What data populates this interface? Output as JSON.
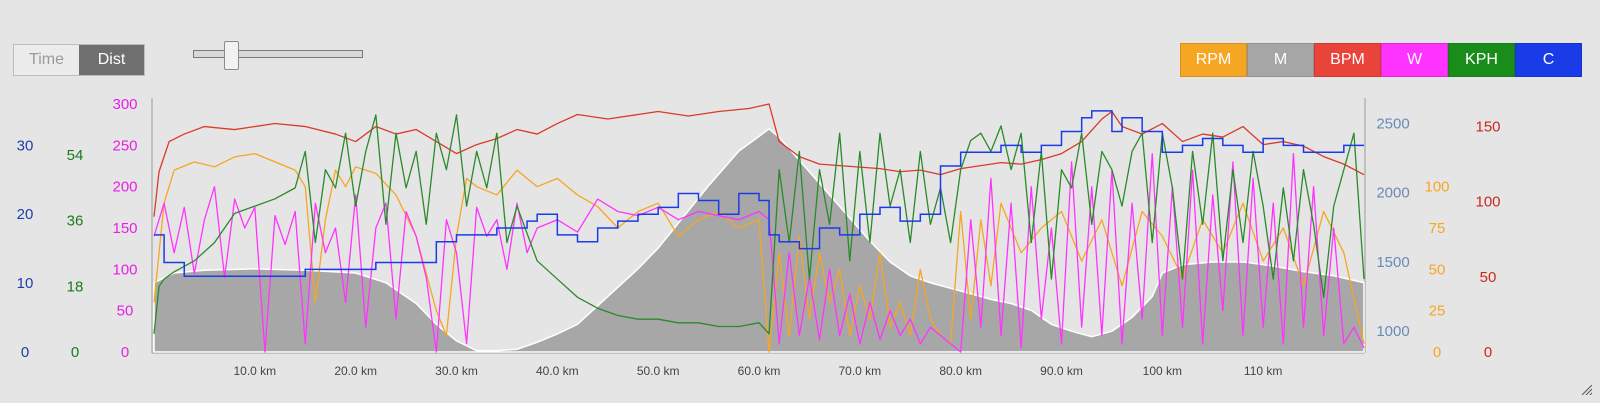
{
  "controls": {
    "mode_options": [
      "Time",
      "Dist"
    ],
    "active_mode": "Dist",
    "zoom_slider_value": 0.2
  },
  "legend": [
    {
      "label": "RPM",
      "color": "#f5a623"
    },
    {
      "label": "M",
      "color": "#a6a6a6"
    },
    {
      "label": "BPM",
      "color": "#e8443a"
    },
    {
      "label": "W",
      "color": "#ff33ff"
    },
    {
      "label": "KPH",
      "color": "#1a8c1a"
    },
    {
      "label": "C",
      "color": "#1a3be8"
    }
  ],
  "chart_data": {
    "type": "line",
    "x_unit": "km",
    "x_range": [
      0,
      120
    ],
    "x_tick_labels": [
      "10.0 km",
      "20.0 km",
      "30.0 km",
      "40.0 km",
      "50.0 km",
      "60.0 km",
      "70.0 km",
      "80.0 km",
      "90.0 km",
      "100 km",
      "110 km"
    ],
    "x_ticks": [
      10,
      20,
      30,
      40,
      50,
      60,
      70,
      80,
      90,
      100,
      110
    ],
    "axes": [
      {
        "name": "C",
        "side": "left",
        "color": "#1a3fa8",
        "range": [
          0,
          36
        ],
        "tick_values": [
          0,
          10,
          20,
          30
        ],
        "tick_labels": [
          "0",
          "10",
          "20",
          "30"
        ]
      },
      {
        "name": "KPH",
        "side": "left",
        "color": "#1a7a1a",
        "range": [
          0,
          68
        ],
        "tick_values": [
          0,
          18,
          36,
          54
        ],
        "tick_labels": [
          "0",
          "18",
          "36",
          "54"
        ]
      },
      {
        "name": "W",
        "side": "left",
        "color": "#e620e6",
        "range": [
          0,
          300
        ],
        "tick_values": [
          0,
          50,
          100,
          150,
          200,
          250,
          300
        ],
        "tick_labels": [
          "0",
          "50",
          "100",
          "150",
          "200",
          "250",
          "300"
        ]
      },
      {
        "name": "M",
        "side": "right",
        "color": "#6a8ab8",
        "range": [
          850,
          2640
        ],
        "tick_values": [
          1000,
          1500,
          2000,
          2500
        ],
        "tick_labels": [
          "1000",
          "1500",
          "2000",
          "2500"
        ]
      },
      {
        "name": "RPM",
        "side": "right",
        "color": "#f5a623",
        "range": [
          0,
          150
        ],
        "tick_values": [
          0,
          25,
          50,
          75,
          100
        ],
        "tick_labels": [
          "0",
          "25",
          "50",
          "75",
          "100"
        ]
      },
      {
        "name": "BPM",
        "side": "right",
        "color": "#c82a1e",
        "range": [
          0,
          165
        ],
        "tick_values": [
          0,
          50,
          100,
          150
        ],
        "tick_labels": [
          "0",
          "50",
          "100",
          "150"
        ]
      }
    ],
    "series": [
      {
        "name": "M",
        "kind": "area",
        "x": [
          0,
          2,
          5,
          10,
          15,
          20,
          23,
          26,
          28,
          30,
          32,
          34,
          36,
          38,
          40,
          42,
          45,
          48,
          50,
          52,
          55,
          58,
          61,
          62,
          65,
          68,
          71,
          73,
          75,
          77,
          79,
          81,
          83,
          85,
          87,
          89,
          91,
          93,
          95,
          97,
          99,
          100,
          102,
          105,
          108,
          111,
          114,
          117,
          120
        ],
        "y": [
          1350,
          1420,
          1440,
          1450,
          1440,
          1420,
          1350,
          1200,
          1050,
          930,
          860,
          860,
          870,
          920,
          980,
          1050,
          1250,
          1450,
          1600,
          1780,
          2050,
          2300,
          2460,
          2400,
          2150,
          1900,
          1650,
          1500,
          1400,
          1350,
          1310,
          1270,
          1230,
          1200,
          1150,
          1050,
          1000,
          960,
          1000,
          1100,
          1250,
          1420,
          1480,
          1500,
          1500,
          1470,
          1430,
          1400,
          1350
        ]
      },
      {
        "name": "BPM",
        "kind": "line",
        "x": [
          0,
          0.5,
          1.5,
          3,
          5,
          8,
          12,
          15,
          18,
          20,
          22,
          24,
          26,
          28,
          30,
          32,
          34,
          36,
          38,
          40,
          42,
          45,
          48,
          50,
          53,
          56,
          59,
          61,
          62,
          64,
          66,
          68,
          70,
          72,
          74,
          76,
          78,
          79,
          80,
          82,
          84,
          86,
          88,
          90,
          92,
          94,
          95,
          96,
          98,
          100,
          102,
          104,
          106,
          108,
          110,
          112,
          114,
          116,
          118,
          120
        ],
        "y": [
          90,
          120,
          140,
          145,
          150,
          148,
          152,
          150,
          145,
          140,
          150,
          145,
          148,
          140,
          132,
          138,
          142,
          148,
          145,
          152,
          158,
          155,
          158,
          160,
          157,
          160,
          162,
          165,
          140,
          130,
          125,
          124,
          123,
          122,
          120,
          121,
          118,
          120,
          122,
          124,
          126,
          125,
          128,
          132,
          140,
          155,
          160,
          150,
          145,
          152,
          140,
          145,
          143,
          150,
          138,
          140,
          137,
          130,
          125,
          118
        ]
      },
      {
        "name": "RPM",
        "kind": "line",
        "x": [
          0,
          1,
          2,
          4,
          6,
          8,
          10,
          12,
          14,
          15,
          16,
          17,
          18,
          19,
          20,
          22,
          24,
          26,
          28,
          29,
          30,
          31,
          32,
          34,
          36,
          38,
          40,
          42,
          44,
          46,
          48,
          50,
          52,
          54,
          56,
          58,
          60,
          61,
          62,
          63,
          64,
          65,
          66,
          67,
          68,
          69,
          70,
          71,
          72,
          73,
          74,
          75,
          76,
          77,
          78,
          79,
          80,
          81,
          82,
          83,
          84,
          86,
          88,
          90,
          92,
          94,
          96,
          98,
          100,
          102,
          104,
          106,
          108,
          110,
          112,
          114,
          116,
          118,
          120
        ],
        "y": [
          30,
          90,
          110,
          115,
          112,
          118,
          120,
          115,
          110,
          100,
          30,
          80,
          110,
          100,
          112,
          108,
          95,
          70,
          25,
          10,
          70,
          105,
          100,
          95,
          110,
          100,
          105,
          95,
          88,
          75,
          85,
          90,
          70,
          80,
          85,
          75,
          80,
          0,
          60,
          10,
          70,
          20,
          60,
          30,
          50,
          10,
          40,
          20,
          60,
          15,
          30,
          10,
          50,
          20,
          10,
          5,
          85,
          20,
          80,
          40,
          90,
          60,
          75,
          85,
          55,
          80,
          40,
          85,
          70,
          45,
          80,
          60,
          90,
          55,
          75,
          40,
          85,
          60,
          5
        ]
      },
      {
        "name": "W",
        "kind": "line",
        "x": [
          0,
          1,
          2,
          3,
          4,
          5,
          6,
          7,
          8,
          9,
          10,
          11,
          12,
          13,
          14,
          15,
          16,
          17,
          18,
          19,
          20,
          21,
          22,
          23,
          24,
          25,
          26,
          27,
          28,
          29,
          30,
          31,
          32,
          33,
          34,
          35,
          36,
          37,
          38,
          40,
          42,
          44,
          46,
          48,
          50,
          52,
          54,
          56,
          58,
          60,
          61,
          62,
          63,
          64,
          65,
          66,
          67,
          68,
          69,
          70,
          71,
          72,
          73,
          74,
          75,
          76,
          77,
          78,
          79,
          80,
          81,
          82,
          83,
          84,
          85,
          86,
          87,
          88,
          89,
          90,
          91,
          92,
          93,
          94,
          95,
          96,
          97,
          98,
          99,
          100,
          101,
          102,
          103,
          104,
          105,
          106,
          107,
          108,
          109,
          110,
          111,
          112,
          113,
          114,
          115,
          116,
          117,
          118,
          119,
          120
        ],
        "y": [
          140,
          180,
          120,
          175,
          95,
          160,
          200,
          90,
          185,
          150,
          175,
          0,
          165,
          130,
          170,
          10,
          180,
          120,
          150,
          60,
          190,
          30,
          150,
          180,
          40,
          170,
          140,
          90,
          0,
          160,
          120,
          10,
          175,
          140,
          160,
          100,
          180,
          120,
          150,
          160,
          145,
          185,
          170,
          165,
          175,
          160,
          170,
          165,
          160,
          170,
          160,
          10,
          120,
          20,
          90,
          15,
          100,
          20,
          70,
          10,
          60,
          15,
          50,
          20,
          40,
          10,
          30,
          20,
          10,
          0,
          160,
          30,
          210,
          20,
          180,
          5,
          200,
          40,
          150,
          10,
          230,
          30,
          200,
          20,
          220,
          10,
          180,
          40,
          240,
          20,
          200,
          30,
          220,
          10,
          190,
          50,
          230,
          20,
          210,
          30,
          180,
          10,
          240,
          30,
          200,
          20,
          150,
          10,
          30,
          5
        ]
      },
      {
        "name": "KPH",
        "kind": "line",
        "x": [
          0,
          0.5,
          1,
          2,
          4,
          6,
          8,
          10,
          12,
          14,
          15,
          16,
          17,
          18,
          19,
          20,
          21,
          22,
          23,
          24,
          25,
          26,
          27,
          28,
          29,
          30,
          31,
          32,
          33,
          34,
          35,
          36,
          38,
          40,
          42,
          44,
          46,
          48,
          50,
          52,
          54,
          56,
          58,
          60,
          61,
          62,
          63,
          64,
          65,
          66,
          67,
          68,
          69,
          70,
          71,
          72,
          73,
          74,
          75,
          76,
          77,
          78,
          79,
          80,
          81,
          82,
          83,
          84,
          85,
          86,
          87,
          88,
          89,
          90,
          91,
          92,
          93,
          94,
          95,
          96,
          97,
          98,
          99,
          100,
          101,
          102,
          103,
          104,
          105,
          106,
          107,
          108,
          109,
          110,
          111,
          112,
          113,
          114,
          115,
          116,
          117,
          118,
          119,
          120
        ],
        "y": [
          5,
          18,
          20,
          22,
          25,
          30,
          38,
          40,
          42,
          45,
          55,
          30,
          50,
          45,
          60,
          40,
          55,
          65,
          35,
          60,
          45,
          55,
          35,
          60,
          50,
          65,
          40,
          55,
          45,
          60,
          30,
          40,
          25,
          20,
          15,
          12,
          10,
          9,
          9,
          8,
          8,
          7,
          7,
          8,
          5,
          50,
          30,
          55,
          20,
          50,
          35,
          60,
          25,
          55,
          30,
          60,
          40,
          50,
          30,
          55,
          35,
          45,
          30,
          50,
          58,
          60,
          55,
          62,
          50,
          60,
          30,
          55,
          20,
          50,
          45,
          60,
          35,
          55,
          50,
          40,
          55,
          60,
          30,
          60,
          45,
          20,
          55,
          35,
          60,
          25,
          50,
          30,
          55,
          40,
          20,
          45,
          25,
          50,
          35,
          15,
          40,
          50,
          60,
          20
        ]
      },
      {
        "name": "C",
        "kind": "step",
        "x": [
          0,
          1,
          3,
          5,
          15,
          18,
          22,
          28,
          30,
          34,
          37,
          38,
          40,
          42,
          44,
          46,
          48,
          50,
          52,
          54,
          56,
          58,
          60,
          61,
          62,
          64,
          66,
          68,
          70,
          72,
          74,
          76,
          78,
          80,
          82,
          84,
          86,
          88,
          90,
          92,
          93,
          95,
          96,
          98,
          100,
          102,
          104,
          106,
          108,
          110,
          112,
          114,
          116,
          118,
          120
        ],
        "y": [
          17,
          13,
          11,
          11,
          12,
          12,
          13,
          16,
          17,
          18,
          19,
          20,
          17,
          16,
          18,
          19,
          20,
          21,
          23,
          22,
          20,
          23,
          22,
          17,
          16,
          15,
          18,
          17,
          20,
          21,
          19,
          20,
          27,
          29,
          29,
          30,
          29,
          30,
          32,
          34,
          35,
          32,
          34,
          32,
          29,
          30,
          31,
          30,
          29,
          31,
          30,
          29,
          29,
          30,
          30
        ]
      }
    ]
  }
}
